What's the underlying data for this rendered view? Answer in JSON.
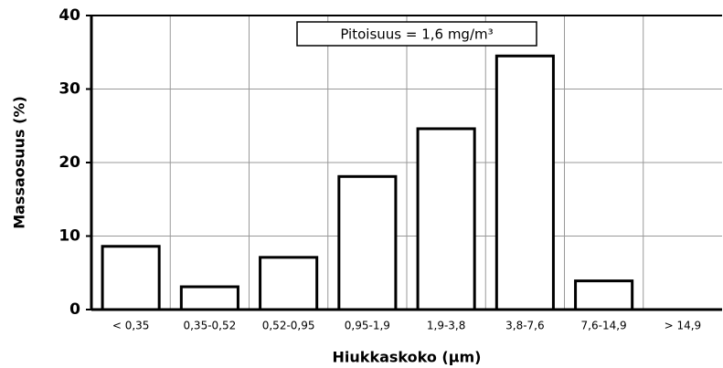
{
  "chart_data": {
    "type": "bar",
    "x_label": "Hiukkaskoko (µm)",
    "y_label": "Massaosuus (%)",
    "annotation": "Pitoisuus = 1,6 mg/m³",
    "categories": [
      "< 0,35",
      "0,35-0,52",
      "0,52-0,95",
      "0,95-1,9",
      "1,9-3,8",
      "3,8-7,6",
      "7,6-14,9",
      "> 14,9"
    ],
    "values": [
      8.6,
      3.1,
      7.1,
      18.1,
      24.6,
      34.5,
      3.9,
      0
    ],
    "color": "#ffffff",
    "ylim": [
      0,
      40
    ],
    "yticks": [
      0,
      10,
      20,
      30,
      40
    ],
    "grid": true
  }
}
